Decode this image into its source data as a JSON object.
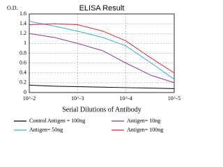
{
  "chart_data": {
    "type": "line",
    "title": "ELISA Result",
    "y_label": "O.D.",
    "x_label": "Serial Dilutions of Antibody",
    "x": [
      0.01,
      0.003,
      0.001,
      0.0003,
      0.0001,
      3e-05,
      1e-05
    ],
    "xscale": "log",
    "xlim": [
      0.01,
      1e-05
    ],
    "xticks": [
      {
        "value": 0.01,
        "label": "10^-2"
      },
      {
        "value": 0.001,
        "label": "10^-3"
      },
      {
        "value": 0.0001,
        "label": "10^-4"
      },
      {
        "value": 1e-05,
        "label": "10^-5"
      }
    ],
    "ylim": [
      0,
      1.6
    ],
    "yticks": [
      0,
      0.2,
      0.4,
      0.6,
      0.8,
      1,
      1.2,
      1.4,
      1.6
    ],
    "grid": true,
    "series": [
      {
        "name": "Control Antigen = 100ng",
        "color": "#000000",
        "values": [
          0.15,
          0.13,
          0.12,
          0.11,
          0.1,
          0.09,
          0.08
        ]
      },
      {
        "name": "Antigen= 10ng",
        "color": "#8e3a8e",
        "values": [
          1.2,
          1.12,
          1.0,
          0.85,
          0.6,
          0.35,
          0.2
        ]
      },
      {
        "name": "Antigen= 50ng",
        "color": "#2ab5d8",
        "values": [
          1.45,
          1.35,
          1.25,
          1.12,
          0.95,
          0.6,
          0.27
        ]
      },
      {
        "name": "Antigen= 100ng",
        "color": "#d42a3a",
        "values": [
          1.38,
          1.4,
          1.38,
          1.25,
          1.05,
          0.7,
          0.4
        ]
      }
    ]
  }
}
